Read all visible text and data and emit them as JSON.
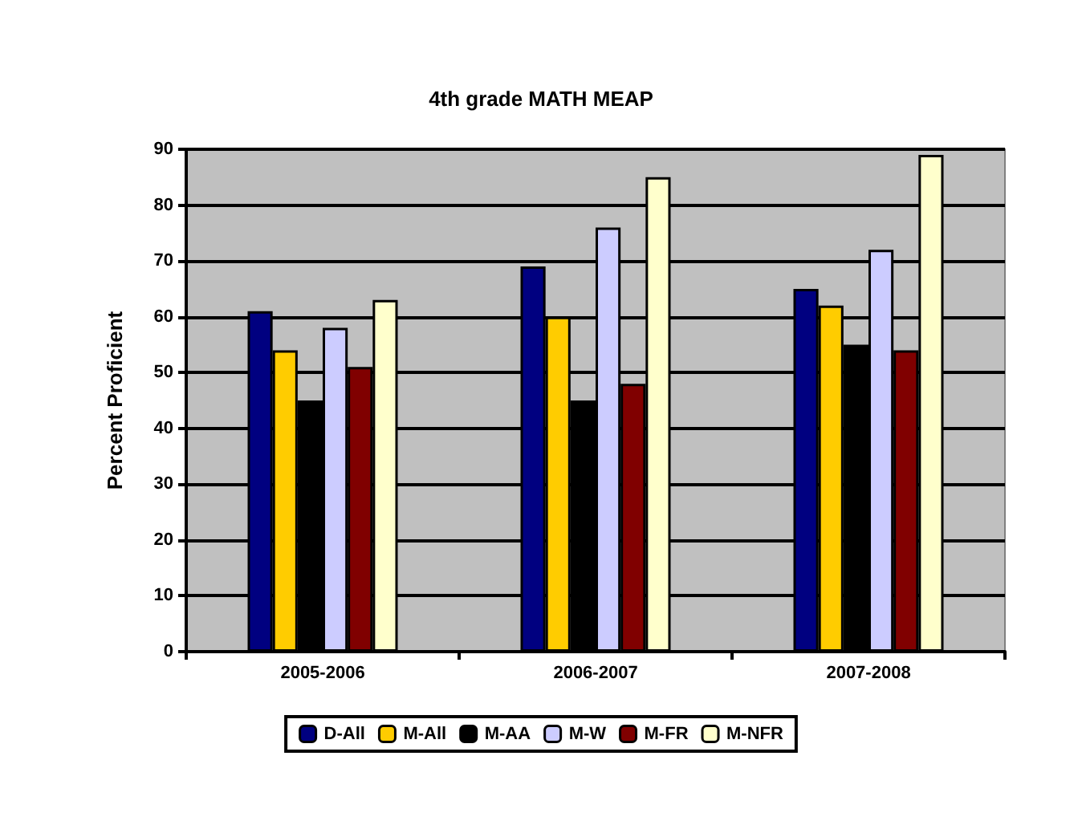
{
  "chart_data": {
    "type": "bar",
    "title": "4th grade MATH MEAP",
    "ylabel": "Percent Proficient",
    "categories": [
      "2005-2006",
      "2006-2007",
      "2007-2008"
    ],
    "series": [
      {
        "name": "D-All",
        "color": "#000080",
        "values": [
          61,
          69,
          65
        ]
      },
      {
        "name": "M-All",
        "color": "#ffcc00",
        "values": [
          54,
          60,
          62
        ]
      },
      {
        "name": "M-AA",
        "color": "#000000",
        "values": [
          45,
          45,
          55
        ]
      },
      {
        "name": "M-W",
        "color": "#ccccff",
        "values": [
          58,
          76,
          72
        ]
      },
      {
        "name": "M-FR",
        "color": "#800000",
        "values": [
          51,
          48,
          54
        ]
      },
      {
        "name": "M-NFR",
        "color": "#ffffcc",
        "values": [
          63,
          85,
          89
        ]
      }
    ],
    "ylim": [
      0,
      90
    ],
    "yticks": [
      0,
      10,
      20,
      30,
      40,
      50,
      60,
      70,
      80,
      90
    ],
    "grid": "y",
    "legend": "bottom"
  }
}
